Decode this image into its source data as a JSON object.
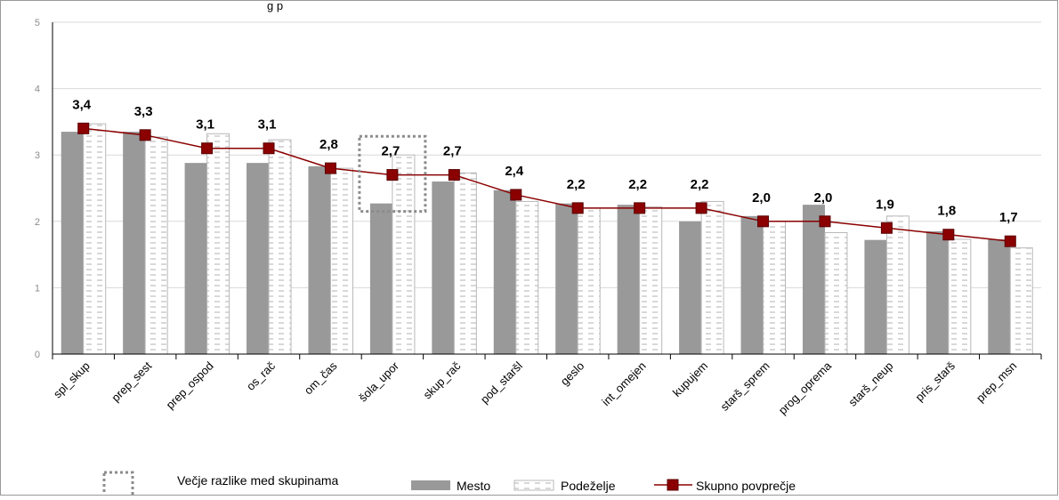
{
  "header_fragment": "g               p",
  "chart_data": {
    "type": "bar",
    "categories": [
      "spl_skup",
      "prep_sest",
      "prep_ospod",
      "os_rač",
      "om_čas",
      "šola_upor",
      "skup_rač",
      "pod_staršl",
      "geslo",
      "int_omejen",
      "kupujem",
      "starš_sprem",
      "prog_oprema",
      "starš_neup",
      "pris_starš",
      "prep_msn"
    ],
    "series": [
      {
        "name": "Mesto",
        "type": "bar",
        "color": "#999999",
        "values": [
          3.35,
          3.35,
          2.88,
          2.88,
          2.83,
          2.27,
          2.6,
          2.47,
          2.27,
          2.25,
          2.0,
          2.08,
          2.25,
          1.72,
          1.85,
          1.73
        ]
      },
      {
        "name": "Podeželje",
        "type": "bar",
        "pattern": "dashed-white",
        "values": [
          3.47,
          3.27,
          3.32,
          3.23,
          2.8,
          3.0,
          2.73,
          2.3,
          2.2,
          2.22,
          2.3,
          2.0,
          1.83,
          2.08,
          1.73,
          1.6
        ]
      },
      {
        "name": "Skupno povprečje",
        "type": "line",
        "color": "#8b0000",
        "values": [
          3.4,
          3.3,
          3.1,
          3.1,
          2.8,
          2.7,
          2.7,
          2.4,
          2.2,
          2.2,
          2.2,
          2.0,
          2.0,
          1.9,
          1.8,
          1.7
        ],
        "labels": [
          "3,4",
          "3,3",
          "3,1",
          "3,1",
          "2,8",
          "2,7",
          "2,7",
          "2,4",
          "2,2",
          "2,2",
          "2,2",
          "2,0",
          "2,0",
          "1,9",
          "1,8",
          "1,7"
        ]
      }
    ],
    "ylim": [
      0,
      5
    ],
    "yticks": [
      "0",
      "1",
      "2",
      "3",
      "4",
      "5"
    ],
    "grid": "horizontal",
    "highlight_category_index": 5,
    "legend": {
      "position": "bottom",
      "highlight_text": "Večje razlike med skupinama",
      "items": [
        "Mesto",
        "Podeželje",
        "Skupno povprečje"
      ]
    }
  }
}
